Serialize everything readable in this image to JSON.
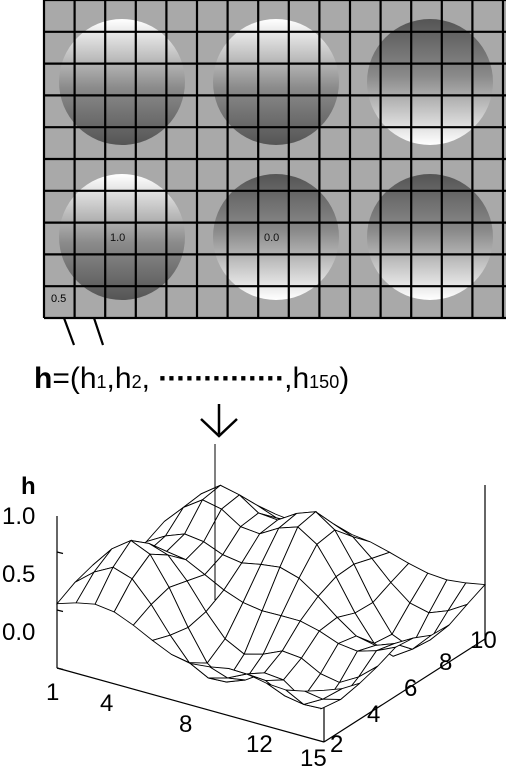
{
  "panel_top": {
    "grid": {
      "columns": 15,
      "rows": 10,
      "background": "#a9a9a9",
      "line_color": "#000000"
    },
    "circles": [
      {
        "row": 0,
        "col": 0,
        "gradient": "light-top",
        "label": ""
      },
      {
        "row": 0,
        "col": 1,
        "gradient": "light-top",
        "label": ""
      },
      {
        "row": 0,
        "col": 2,
        "gradient": "dark-top",
        "label": ""
      },
      {
        "row": 1,
        "col": 0,
        "gradient": "light-top",
        "label": "1.0"
      },
      {
        "row": 1,
        "col": 1,
        "gradient": "dark-top",
        "label": "0.0"
      },
      {
        "row": 1,
        "col": 2,
        "gradient": "dark-top",
        "label": ""
      }
    ],
    "corner_cell_label": "0.5"
  },
  "formula": {
    "bold": "h",
    "open": "=(h",
    "sub1": "1",
    "mid1": ",h",
    "sub2": "2",
    "mid2": ", ",
    "dots": "··············",
    "mid3": ",h",
    "sub3": "150",
    "close": ")"
  },
  "plot3d": {
    "z_title": "h",
    "z_ticks": [
      "1.0",
      "0.5",
      "0.0"
    ],
    "x_ticks": [
      "1",
      "4",
      "8",
      "12",
      "15"
    ],
    "y_ticks": [
      "2",
      "4",
      "6",
      "8",
      "10"
    ]
  }
}
